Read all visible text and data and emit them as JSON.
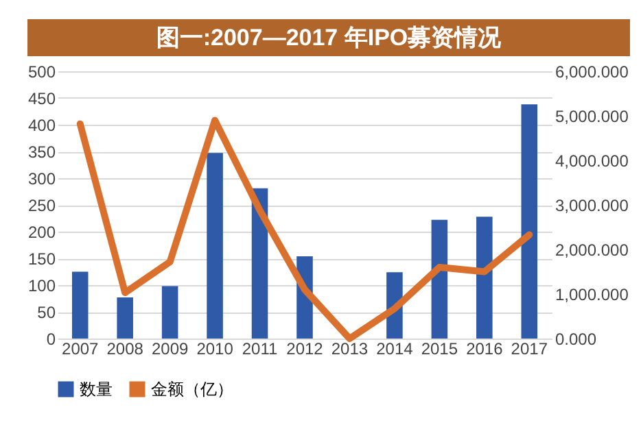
{
  "chart_data": {
    "type": "bar",
    "title": "图一:2007—2017 年IPO募资情况",
    "categories": [
      "2007",
      "2008",
      "2009",
      "2010",
      "2011",
      "2012",
      "2013",
      "2014",
      "2015",
      "2016",
      "2017"
    ],
    "series": [
      {
        "name": "数量",
        "color": "#2e5aa8",
        "values": [
          125,
          77,
          98,
          347,
          281,
          154,
          0,
          124,
          222,
          228,
          438
        ]
      },
      {
        "name": "金额（亿）",
        "type": "line",
        "axis": "y2",
        "color": "#d9702e",
        "values": [
          4820,
          1030,
          1720,
          4900,
          2880,
          1100,
          0,
          670,
          1600,
          1500,
          2330
        ]
      }
    ],
    "ylim": [
      0,
      500
    ],
    "yticks": [
      0,
      50,
      100,
      150,
      200,
      250,
      300,
      350,
      400,
      450,
      500
    ],
    "y2lim": [
      0,
      6000
    ],
    "y2ticks": [
      {
        "value": 0,
        "label": "0.000"
      },
      {
        "value": 1000,
        "label": "1,000.000"
      },
      {
        "value": 2000,
        "label": "2,000.000"
      },
      {
        "value": 3000,
        "label": "3,000.000"
      },
      {
        "value": 4000,
        "label": "4,000.000"
      },
      {
        "value": 5000,
        "label": "5,000.000"
      },
      {
        "value": 6000,
        "label": "6,000.000"
      }
    ],
    "grid": "y",
    "legend": "bottom"
  }
}
